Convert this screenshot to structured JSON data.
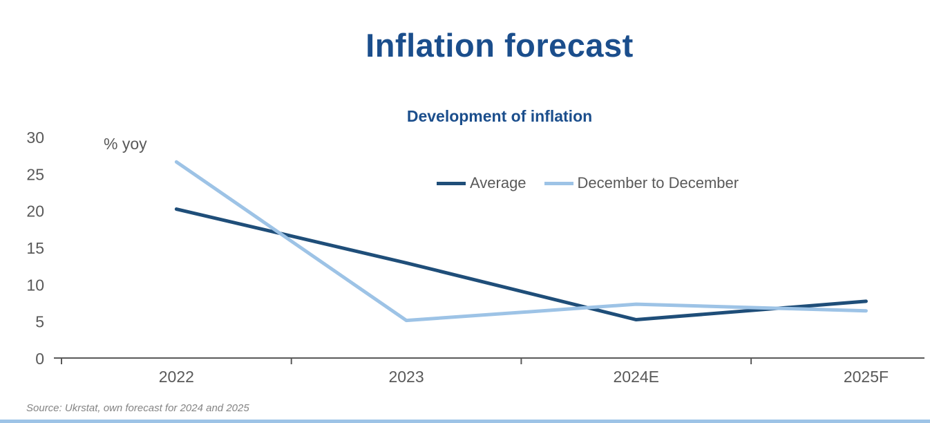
{
  "page": {
    "title": "Inflation forecast",
    "source_note": "Source: Ukrstat, own forecast for 2024 and 2025"
  },
  "colors": {
    "title_blue": "#1B4E8C",
    "axis_gray": "#595959",
    "source_gray": "#848484",
    "footer_strip_blue": "#9DC3E6",
    "average_line": "#1F4E79",
    "december_line": "#9DC3E6"
  },
  "chart_data": {
    "type": "line",
    "title": "Development of inflation",
    "unit_note": "% yoy",
    "categories": [
      "2022",
      "2023",
      "2024E",
      "2025F"
    ],
    "series": [
      {
        "name": "Average",
        "color": "#1F4E79",
        "values": [
          20.2,
          12.9,
          5.2,
          7.7
        ]
      },
      {
        "name": "December to December",
        "color": "#9DC3E6",
        "values": [
          26.6,
          5.1,
          7.3,
          6.4
        ]
      }
    ],
    "xlabel": "",
    "ylabel": "",
    "ylim": [
      0,
      30
    ],
    "yticks": [
      0,
      5,
      10,
      15,
      20,
      25,
      30
    ],
    "grid": false,
    "legend_position": "inside-top-right"
  }
}
